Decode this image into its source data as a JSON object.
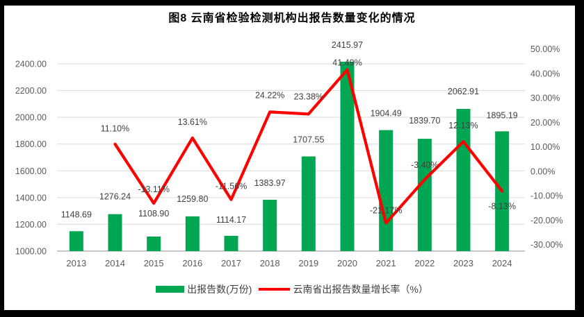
{
  "title": "图8 云南省检验检测机构出报告数量变化的情况",
  "colors": {
    "bar": "#00A651",
    "line": "#FF0000",
    "grid": "#D9D9D9",
    "axis_line": "#A6A6A6",
    "tick_text": "#595959",
    "data_label": "#404040",
    "title_text": "#000000",
    "frame": "#000000"
  },
  "chart_data": {
    "type": "bar",
    "subtype": "combo bar+line, dual axis",
    "title": "图8 云南省检验检测机构出报告数量变化的情况",
    "categories": [
      "2013",
      "2014",
      "2015",
      "2016",
      "2017",
      "2018",
      "2019",
      "2020",
      "2021",
      "2022",
      "2023",
      "2024"
    ],
    "series": [
      {
        "name": "出报告数(万份)",
        "type": "bar",
        "axis": "left",
        "color": "#00A651",
        "values": [
          1148.69,
          1276.24,
          1108.9,
          1259.8,
          1114.17,
          1383.97,
          1707.55,
          2415.97,
          1904.49,
          1839.7,
          2062.91,
          1895.19
        ],
        "labels": [
          "1148.69",
          "1276.24",
          "1108.90",
          "1259.80",
          "1114.17",
          "1383.97",
          "1707.55",
          "2415.97",
          "1904.49",
          "1839.70",
          "2062.91",
          "1895.19"
        ],
        "label_dy": [
          -24,
          -25,
          -33,
          -25,
          -23,
          -24,
          -24,
          -24,
          -24,
          -26,
          -25,
          -23
        ]
      },
      {
        "name": "云南省出报告数量增长率（%）",
        "type": "line",
        "axis": "right",
        "color": "#FF0000",
        "values": [
          null,
          11.1,
          -13.11,
          13.61,
          -11.56,
          24.22,
          23.38,
          41.49,
          -21.17,
          -3.4,
          12.13,
          -8.13
        ],
        "labels": [
          null,
          "11.10%",
          "-13.11%",
          "13.61%",
          "-11.56%",
          "24.22%",
          "23.38%",
          "41.49%",
          "-21.17%",
          "-3.40%",
          "12.13%",
          "-8.13%"
        ],
        "label_dy": [
          null,
          -22,
          -20,
          -23,
          -19,
          -24,
          -25,
          -10,
          -18,
          -21,
          -23,
          22
        ]
      }
    ],
    "left_axis": {
      "min": 1000,
      "max": 2400,
      "step": 200,
      "tick_labels": [
        "1000.00",
        "1200.00",
        "1400.00",
        "1600.00",
        "1800.00",
        "2000.00",
        "2200.00",
        "2400.00"
      ]
    },
    "right_axis": {
      "min": -30,
      "max": 50,
      "step": 10,
      "tick_labels": [
        "-30.00%",
        "-20.00%",
        "-10.00%",
        "0.00%",
        "10.00%",
        "20.00%",
        "30.00%",
        "40.00%",
        "50.00%"
      ]
    },
    "grid": true,
    "legend_position": "bottom"
  }
}
